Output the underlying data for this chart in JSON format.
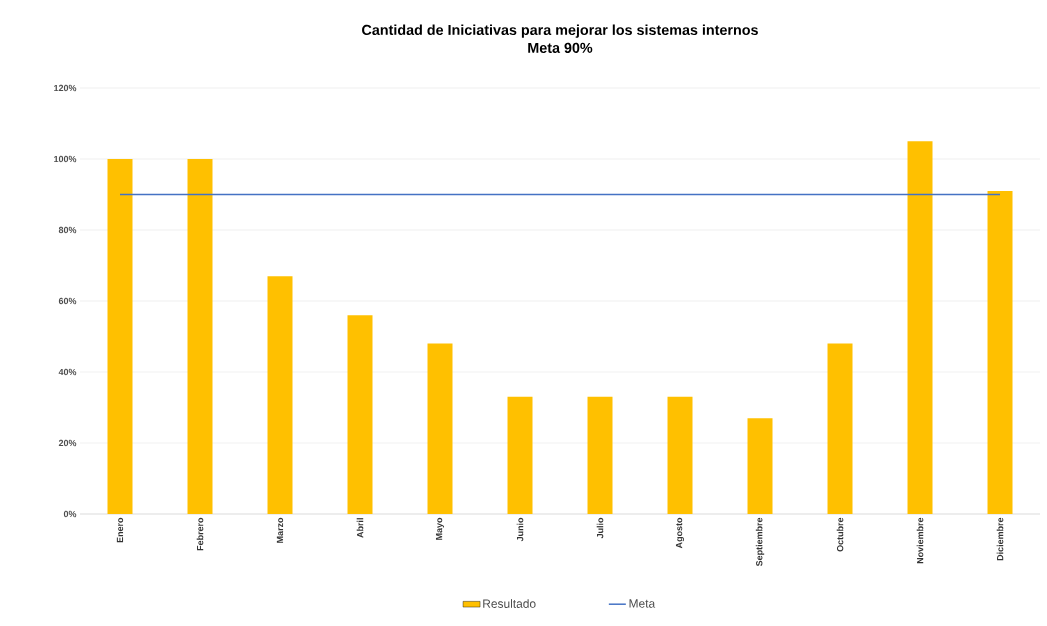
{
  "chart_data": {
    "type": "bar",
    "title": "Cantidad de Iniciativas para mejorar los sistemas internos",
    "subtitle": "Meta 90%",
    "categories": [
      "Enero",
      "Febrero",
      "Marzo",
      "Abril",
      "Mayo",
      "Junio",
      "Julio",
      "Agosto",
      "Septiembre",
      "Octubre",
      "Noviembre",
      "Diciembre"
    ],
    "series": [
      {
        "name": "Resultado",
        "color": "#ffc000",
        "values": [
          100,
          100,
          67,
          56,
          48,
          33,
          33,
          33,
          27,
          48,
          105,
          91
        ]
      },
      {
        "name": "Meta",
        "type": "line",
        "color": "#4472c4",
        "values": [
          90,
          90,
          90,
          90,
          90,
          90,
          90,
          90,
          90,
          90,
          90,
          90
        ]
      }
    ],
    "ylim": [
      0,
      120
    ],
    "yticks": [
      {
        "value": 0,
        "label": "0%"
      },
      {
        "value": 20,
        "label": "20%"
      },
      {
        "value": 40,
        "label": "40%"
      },
      {
        "value": 60,
        "label": "60%"
      },
      {
        "value": 80,
        "label": "80%"
      },
      {
        "value": 100,
        "label": "100%"
      },
      {
        "value": 120,
        "label": "120%"
      }
    ],
    "grid": "y",
    "legend": "bottom"
  }
}
